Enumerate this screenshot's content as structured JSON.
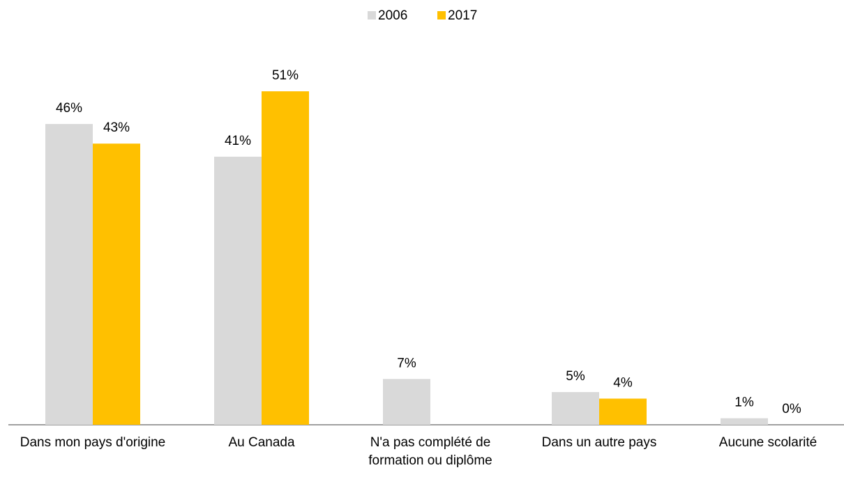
{
  "chart_data": {
    "type": "bar",
    "categories": [
      "Dans mon pays d'origine",
      "Au Canada",
      "N'a pas complété de formation ou diplôme",
      "Dans un autre pays",
      "Aucune scolarité"
    ],
    "series": [
      {
        "name": "2006",
        "color": "#d9d9d9",
        "values": [
          46,
          41,
          7,
          5,
          1
        ],
        "value_labels": [
          "46%",
          "41%",
          "7%",
          "5%",
          "1%"
        ]
      },
      {
        "name": "2017",
        "color": "#ffc000",
        "values": [
          43,
          51,
          null,
          4,
          0
        ],
        "value_labels": [
          "43%",
          "51%",
          null,
          "4%",
          "0%"
        ]
      }
    ],
    "legend": "top"
  }
}
